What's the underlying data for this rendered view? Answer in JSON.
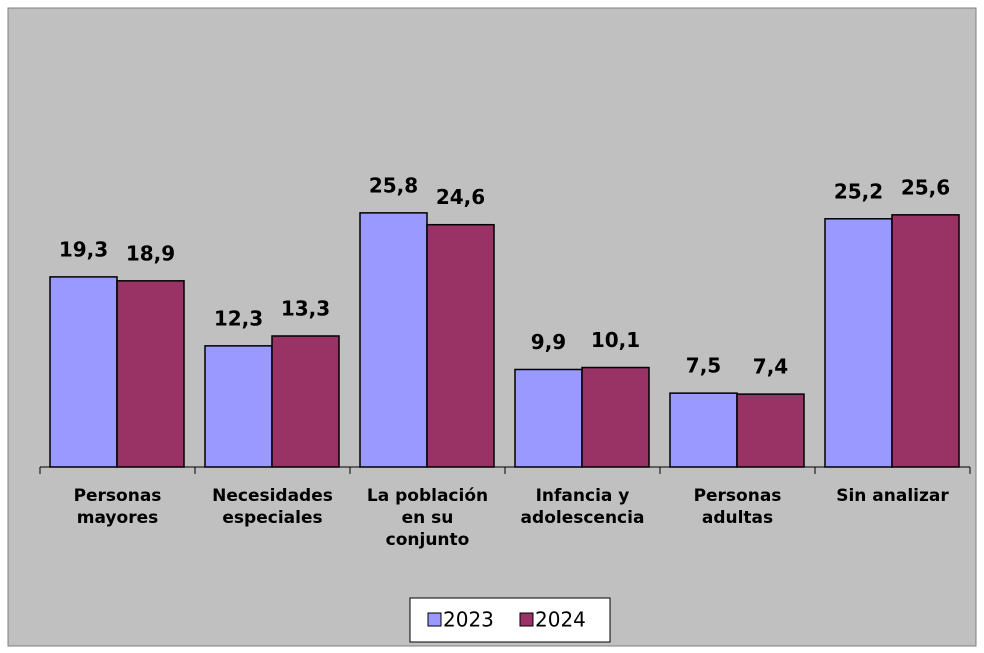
{
  "chart_data": {
    "type": "bar",
    "categories": [
      "Personas\nmayores",
      "Necesidades\nespeciales",
      "La población\nen su\nconjunto",
      "Infancia y\nadolescencia",
      "Personas\nadultas",
      "Sin analizar"
    ],
    "series": [
      {
        "name": "2023",
        "color": "#9999ff",
        "values": [
          19.3,
          12.3,
          25.8,
          9.9,
          7.5,
          25.2
        ],
        "value_labels": [
          "19,3",
          "12,3",
          "25,8",
          "9,9",
          "7,5",
          "25,2"
        ]
      },
      {
        "name": "2024",
        "color": "#993366",
        "values": [
          18.9,
          13.3,
          24.6,
          10.1,
          7.4,
          25.6
        ],
        "value_labels": [
          "18,9",
          "13,3",
          "24,6",
          "10,1",
          "7,4",
          "25,6"
        ]
      }
    ],
    "ylim": [
      0,
      40
    ]
  }
}
